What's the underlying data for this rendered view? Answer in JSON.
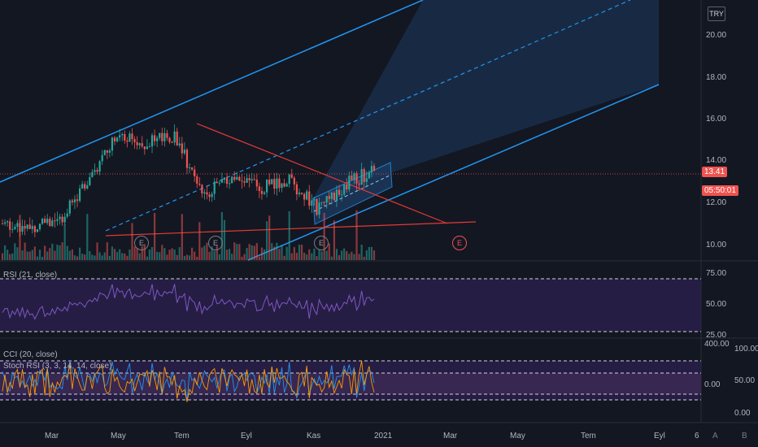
{
  "currency_button": "TRY",
  "time_axis_labels": [
    "Mar",
    "May",
    "Tem",
    "Eyl",
    "Kas",
    "2021",
    "Mar",
    "May",
    "Tem",
    "Eyl",
    "6"
  ],
  "bottom_buttons": [
    "A",
    "B"
  ],
  "event_markers": [
    "E",
    "E",
    "E",
    "E"
  ],
  "colors": {
    "background": "#131722",
    "up": "#26a69a",
    "down": "#ef5350",
    "channel": "#2196f3",
    "channel_fill": "#1e3a5f",
    "wedge": "#e53935",
    "rsi_line": "#7e57c2",
    "rsi_fill": "#2a1f4a",
    "cci_line": "#2196f3",
    "stoch_k": "#ff9800",
    "price_tag": "#ef5350"
  },
  "price_tags": {
    "last_price": "13.41",
    "countdown": "05:50:01"
  },
  "chart_data": [
    {
      "type": "candlestick",
      "pane": "price",
      "y_ticks": [
        "20.00",
        "18.00",
        "16.00",
        "14.00",
        "12.00",
        "10.00"
      ],
      "ylim": [
        9.2,
        21.3
      ],
      "last_price": 13.41,
      "approx_path": [
        {
          "month": "2020-02",
          "close": 10.9
        },
        {
          "month": "2020-03",
          "close": 10.8
        },
        {
          "month": "2020-04",
          "close": 11.1
        },
        {
          "month": "2020-04-end",
          "close": 12.9
        },
        {
          "month": "2020-05",
          "close": 15.2
        },
        {
          "month": "2020-06",
          "close": 14.6
        },
        {
          "month": "2020-07",
          "close": 15.0
        },
        {
          "month": "2020-07-mid",
          "close": 12.3
        },
        {
          "month": "2020-08",
          "close": 13.0
        },
        {
          "month": "2020-09",
          "close": 12.6
        },
        {
          "month": "2020-10",
          "close": 12.9
        },
        {
          "month": "2020-11",
          "close": 11.6
        },
        {
          "month": "2020-12",
          "close": 12.7
        },
        {
          "month": "2020-12-end",
          "close": 13.41
        }
      ]
    },
    {
      "type": "line",
      "pane": "rsi",
      "title": "RSI (21, close)",
      "y_ticks": [
        "75.00",
        "50.00",
        "25.00"
      ],
      "ylim": [
        22,
        78
      ],
      "bands": [
        70,
        30
      ]
    },
    {
      "type": "line",
      "pane": "cci_stoch",
      "titles": [
        "CCI (20, close)",
        "Stoch RSI (3, 3, 14, 14, close)"
      ],
      "y_ticks_left": [
        "400.00",
        "0.00"
      ],
      "y_ticks_right": [
        "100.00",
        "50.00",
        "0.00"
      ],
      "series": [
        {
          "name": "CCI"
        },
        {
          "name": "Stoch RSI"
        }
      ]
    }
  ]
}
